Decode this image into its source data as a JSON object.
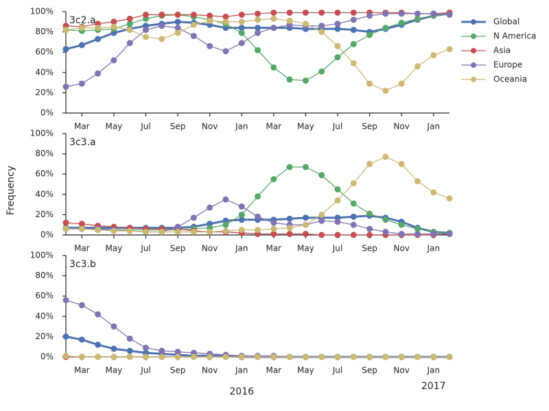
{
  "ylabel": "Frequency",
  "x_year_labels": [
    "2016",
    "2017"
  ],
  "legend": "outside-right",
  "chart_data": [
    {
      "type": "line",
      "title": "3c2.a",
      "categories": [
        null,
        "Mar",
        null,
        "May",
        null,
        "Jul",
        null,
        "Sep",
        null,
        "Nov",
        null,
        "Jan",
        null,
        "Mar",
        null,
        "May",
        null,
        "Jul",
        null,
        "Sep",
        null,
        "Nov",
        null,
        "Jan",
        null
      ],
      "ylim": [
        0,
        100
      ],
      "yticks": [
        {
          "value": 0,
          "label": "0%"
        },
        {
          "value": 20,
          "label": "20%"
        },
        {
          "value": 40,
          "label": "40%"
        },
        {
          "value": 60,
          "label": "60%"
        },
        {
          "value": 80,
          "label": "80%"
        },
        {
          "value": 100,
          "label": "100%"
        }
      ],
      "series": [
        {
          "name": "Global",
          "color": "#4c72b0",
          "values": [
            63,
            67,
            73,
            79,
            83,
            86,
            88,
            90,
            89,
            87,
            84,
            84,
            84,
            84,
            84,
            83,
            83,
            83,
            82,
            80,
            83,
            87,
            92,
            96,
            98
          ]
        },
        {
          "name": "N America",
          "color": "#55a868",
          "values": [
            82,
            81,
            82,
            83,
            88,
            93,
            96,
            97,
            95,
            92,
            88,
            79,
            62,
            45,
            33,
            32,
            41,
            55,
            68,
            77,
            84,
            89,
            93,
            96,
            98
          ]
        },
        {
          "name": "Asia",
          "color": "#c44e52",
          "values": [
            86,
            85,
            88,
            90,
            93,
            97,
            97,
            97,
            97,
            96,
            95,
            97,
            98,
            99,
            99,
            99,
            99,
            99,
            99,
            99,
            99,
            99,
            98,
            98,
            99
          ]
        },
        {
          "name": "Europe",
          "color": "#8172b2",
          "values": [
            26,
            29,
            39,
            52,
            69,
            82,
            86,
            84,
            76,
            66,
            61,
            69,
            79,
            84,
            87,
            86,
            86,
            88,
            92,
            96,
            98,
            98,
            98,
            98,
            97
          ]
        },
        {
          "name": "Oceania",
          "color": "#ccb974",
          "values": [
            82,
            84,
            84,
            85,
            82,
            75,
            73,
            79,
            87,
            91,
            90,
            90,
            92,
            93,
            91,
            88,
            80,
            66,
            49,
            29,
            22,
            29,
            46,
            57,
            63
          ]
        }
      ]
    },
    {
      "type": "line",
      "title": "3c3.a",
      "categories": [
        null,
        "Mar",
        null,
        "May",
        null,
        "Jul",
        null,
        "Sep",
        null,
        "Nov",
        null,
        "Jan",
        null,
        "Mar",
        null,
        "May",
        null,
        "Jul",
        null,
        "Sep",
        null,
        "Nov",
        null,
        "Jan",
        null
      ],
      "ylim": [
        0,
        100
      ],
      "yticks": [
        {
          "value": 0,
          "label": "0%"
        },
        {
          "value": 20,
          "label": "20%"
        },
        {
          "value": 40,
          "label": "40%"
        },
        {
          "value": 60,
          "label": "60%"
        },
        {
          "value": 80,
          "label": "80%"
        },
        {
          "value": 100,
          "label": "100%"
        }
      ],
      "series": [
        {
          "name": "Global",
          "color": "#4c72b0",
          "values": [
            7,
            7,
            7,
            7,
            7,
            7,
            7,
            7,
            8,
            11,
            14,
            15,
            15,
            15,
            16,
            17,
            17,
            17,
            18,
            19,
            17,
            13,
            7,
            3,
            2
          ]
        },
        {
          "name": "N America",
          "color": "#55a868",
          "values": [
            6,
            6,
            5,
            5,
            5,
            5,
            5,
            5,
            6,
            7,
            10,
            20,
            38,
            55,
            67,
            67,
            59,
            45,
            31,
            21,
            15,
            10,
            6,
            3,
            2
          ]
        },
        {
          "name": "Asia",
          "color": "#c44e52",
          "values": [
            12,
            11,
            9,
            8,
            7,
            6,
            6,
            6,
            4,
            3,
            3,
            2,
            1,
            1,
            1,
            1,
            0,
            0,
            0,
            0,
            0,
            0,
            0,
            0,
            1
          ]
        },
        {
          "name": "Europe",
          "color": "#8172b2",
          "values": [
            6,
            6,
            6,
            5,
            4,
            3,
            3,
            8,
            17,
            27,
            35,
            28,
            18,
            12,
            10,
            10,
            14,
            13,
            10,
            6,
            3,
            1,
            1,
            1,
            1
          ]
        },
        {
          "name": "Oceania",
          "color": "#ccb974",
          "values": [
            6,
            6,
            5,
            4,
            4,
            3,
            3,
            3,
            3,
            3,
            4,
            5,
            5,
            6,
            7,
            10,
            20,
            34,
            51,
            70,
            77,
            70,
            53,
            42,
            36
          ]
        }
      ]
    },
    {
      "type": "line",
      "title": "3c3.b",
      "categories": [
        null,
        "Mar",
        null,
        "May",
        null,
        "Jul",
        null,
        "Sep",
        null,
        "Nov",
        null,
        "Jan",
        null,
        "Mar",
        null,
        "May",
        null,
        "Jul",
        null,
        "Sep",
        null,
        "Nov",
        null,
        "Jan",
        null
      ],
      "ylim": [
        0,
        100
      ],
      "yticks": [
        {
          "value": 0,
          "label": "0%"
        },
        {
          "value": 20,
          "label": "20%"
        },
        {
          "value": 40,
          "label": "40%"
        },
        {
          "value": 60,
          "label": "60%"
        },
        {
          "value": 80,
          "label": "80%"
        },
        {
          "value": 100,
          "label": "100%"
        }
      ],
      "series": [
        {
          "name": "Global",
          "color": "#4c72b0",
          "values": [
            20,
            17,
            12,
            8,
            6,
            4,
            3,
            2,
            1,
            1,
            1,
            0,
            0,
            0,
            0,
            0,
            0,
            0,
            0,
            0,
            0,
            0,
            0,
            0,
            0
          ]
        },
        {
          "name": "N America",
          "color": "#55a868",
          "values": [
            0,
            0,
            0,
            0,
            0,
            0,
            0,
            0,
            0,
            0,
            0,
            0,
            0,
            0,
            0,
            0,
            0,
            0,
            0,
            0,
            0,
            0,
            0,
            0,
            0
          ]
        },
        {
          "name": "Asia",
          "color": "#c44e52",
          "values": [
            0,
            0,
            0,
            0,
            0,
            0,
            0,
            0,
            0,
            0,
            0,
            0,
            0,
            0,
            0,
            0,
            0,
            0,
            0,
            0,
            0,
            0,
            0,
            0,
            0
          ]
        },
        {
          "name": "Europe",
          "color": "#8172b2",
          "values": [
            56,
            51,
            42,
            30,
            18,
            9,
            6,
            5,
            4,
            3,
            2,
            1,
            1,
            1,
            0,
            0,
            0,
            0,
            0,
            0,
            0,
            0,
            0,
            0,
            0
          ]
        },
        {
          "name": "Oceania",
          "color": "#ccb974",
          "values": [
            1,
            0,
            0,
            0,
            0,
            0,
            0,
            0,
            0,
            0,
            0,
            0,
            0,
            0,
            0,
            0,
            0,
            0,
            0,
            0,
            0,
            0,
            0,
            0,
            0
          ]
        }
      ]
    }
  ]
}
